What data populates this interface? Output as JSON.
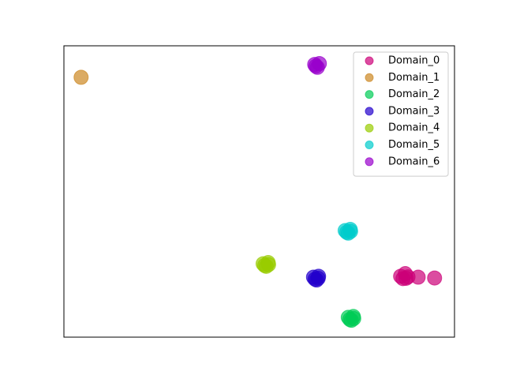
{
  "chart_data": {
    "type": "scatter",
    "xlim": [
      0,
      100
    ],
    "ylim": [
      0,
      100
    ],
    "legend": "upper right",
    "series": [
      {
        "name": "Domain_0",
        "color": "#cc0077",
        "x": [
          86.2,
          87.4,
          88.1,
          86.8,
          87.6,
          90.7,
          94.9
        ],
        "y": [
          20.9,
          21.8,
          20.7,
          20.1,
          20.2,
          20.6,
          20.3
        ]
      },
      {
        "name": "Domain_1",
        "color": "#cc8822",
        "x": [
          4.4
        ],
        "y": [
          89.2
        ]
      },
      {
        "name": "Domain_2",
        "color": "#00cc55",
        "x": [
          72.8,
          74.1,
          73.6,
          73.2,
          74.2
        ],
        "y": [
          6.8,
          7.1,
          5.8,
          6.1,
          6.4
        ]
      },
      {
        "name": "Domain_3",
        "color": "#2200cc",
        "x": [
          63.9,
          65.2,
          64.7,
          64.3,
          65.1
        ],
        "y": [
          20.6,
          20.9,
          19.6,
          19.9,
          20.2
        ]
      },
      {
        "name": "Domain_4",
        "color": "#99cc00",
        "x": [
          51.0,
          52.3,
          51.8,
          51.4,
          52.4
        ],
        "y": [
          25.2,
          25.6,
          24.3,
          24.6,
          24.9
        ]
      },
      {
        "name": "Domain_5",
        "color": "#00cccc",
        "x": [
          72.0,
          73.3,
          72.8,
          72.4,
          73.4
        ],
        "y": [
          36.6,
          37.0,
          35.7,
          36.0,
          36.3
        ]
      },
      {
        "name": "Domain_6",
        "color": "#9900cc",
        "x": [
          64.2,
          65.4,
          64.9,
          64.5
        ],
        "y": [
          93.6,
          93.9,
          92.6,
          93.0
        ]
      }
    ]
  }
}
